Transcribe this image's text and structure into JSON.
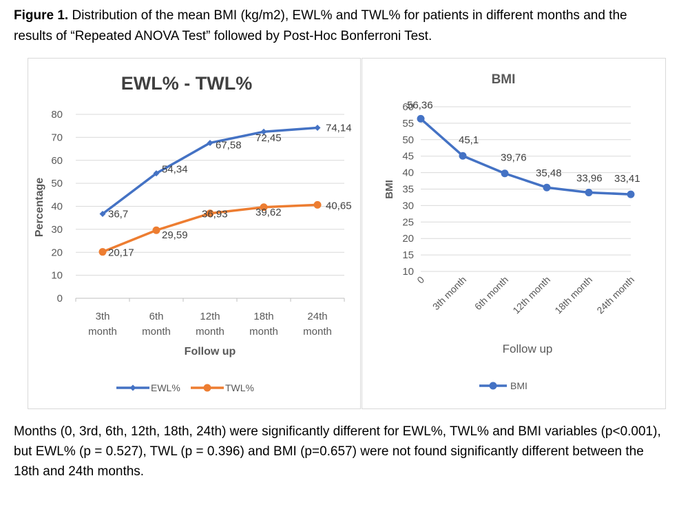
{
  "caption": {
    "label": "Figure 1.",
    "text": " Distribution of the mean BMI (kg/m2), EWL% and TWL% for patients in different months and the results of “Repeated ANOVA Test” followed by Post-Hoc Bonferroni Test."
  },
  "note": "Months (0, 3rd, 6th, 12th, 18th, 24th) were significantly different for EWL%, TWL% and BMI variables (p<0.001), but EWL% (p = 0.527), TWL (p = 0.396) and BMI (p=0.657) were not found significantly different between the 18th and 24th months.",
  "chart_data": [
    {
      "type": "line",
      "title": "EWL% - TWL%",
      "xlabel": "Follow up",
      "ylabel": "Percentage",
      "categories": [
        [
          "3th",
          "month"
        ],
        [
          "6th",
          "month"
        ],
        [
          "12th",
          "month"
        ],
        [
          "18th",
          "month"
        ],
        [
          "24th",
          "month"
        ]
      ],
      "ylim": [
        0,
        80
      ],
      "yticks": [
        0,
        10,
        20,
        30,
        40,
        50,
        60,
        70,
        80
      ],
      "grid": true,
      "legend_position": "bottom",
      "series": [
        {
          "name": "EWL%",
          "color": "#4472c4",
          "marker": "diamond",
          "values": [
            36.7,
            54.34,
            67.58,
            72.45,
            74.14
          ],
          "labels": [
            "36,7",
            "54,34",
            "67,58",
            "72,45",
            "74,14"
          ]
        },
        {
          "name": "TWL%",
          "color": "#ed7d31",
          "marker": "circle",
          "values": [
            20.17,
            29.59,
            36.93,
            39.62,
            40.65
          ],
          "labels": [
            "20,17",
            "29,59",
            "36,93",
            "39,62",
            "40,65"
          ]
        }
      ]
    },
    {
      "type": "line",
      "title": "BMI",
      "xlabel": "Follow up",
      "ylabel": "BMI",
      "categories": [
        "0",
        "3th month",
        "6th month",
        "12th month",
        "18th month",
        "24th month"
      ],
      "ylim": [
        10,
        60
      ],
      "yticks": [
        10,
        15,
        20,
        25,
        30,
        35,
        40,
        45,
        50,
        55,
        60
      ],
      "grid": true,
      "legend_position": "bottom",
      "series": [
        {
          "name": "BMI",
          "color": "#4472c4",
          "marker": "circle",
          "values": [
            56.36,
            45.1,
            39.76,
            35.48,
            33.96,
            33.41
          ],
          "labels": [
            "56,36",
            "45,1",
            "39,76",
            "35,48",
            "33,96",
            "33,41"
          ]
        }
      ]
    }
  ]
}
